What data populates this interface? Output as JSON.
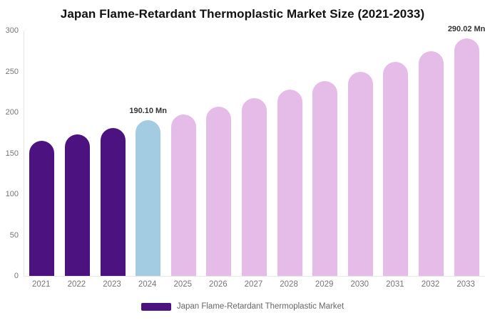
{
  "chart_data": {
    "type": "bar",
    "title": "Japan Flame-Retardant Thermoplastic Market Size (2021-2033)",
    "unit": "Mn",
    "categories": [
      "2021",
      "2022",
      "2023",
      "2024",
      "2025",
      "2026",
      "2027",
      "2028",
      "2029",
      "2030",
      "2031",
      "2032",
      "2033"
    ],
    "values": [
      165,
      173,
      181,
      190.1,
      197.5,
      207,
      217.5,
      228,
      238.5,
      249.5,
      262,
      275,
      290.02
    ],
    "point_colors": [
      "#4C1380",
      "#4C1380",
      "#4C1380",
      "#A3CCE3",
      "#E5BCE8",
      "#E5BCE8",
      "#E5BCE8",
      "#E5BCE8",
      "#E5BCE8",
      "#E5BCE8",
      "#E5BCE8",
      "#E5BCE8",
      "#E5BCE8"
    ],
    "data_labels": [
      {
        "index": 3,
        "text": "190.10 Mn"
      },
      {
        "index": 12,
        "text": "290.02 Mn"
      }
    ],
    "yticks": [
      0,
      50,
      100,
      150,
      200,
      250,
      300
    ],
    "ylim": [
      0,
      300
    ],
    "grid": false,
    "legend": {
      "label": "Japan Flame-Retardant Thermoplastic Market",
      "swatch_color": "#4C1380",
      "position": "bottom"
    }
  },
  "colors": {
    "historical_bar": "#4C1380",
    "base_year_bar": "#A3CCE3",
    "forecast_bar": "#E5BCE8",
    "axis_line": "#e6e6e6",
    "axis_text": "#757575",
    "title_text": "#111111",
    "data_label_text": "#333333",
    "legend_text": "#666666",
    "background": "#ffffff"
  }
}
